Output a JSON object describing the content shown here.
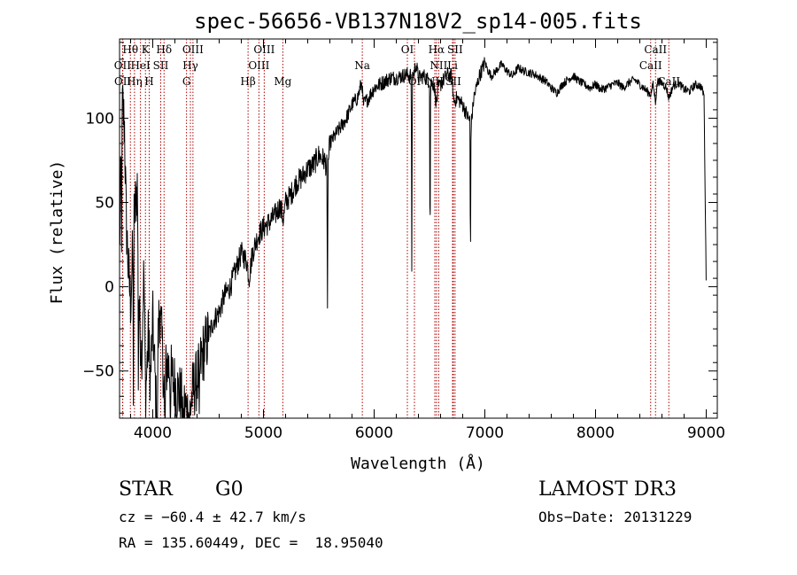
{
  "chart_data": {
    "type": "line",
    "title": "spec-56656-VB137N18V2_sp14-005.fits",
    "xlabel": "Wavelength (Å)",
    "ylabel": "Flux (relative)",
    "xlim": [
      3700,
      9100
    ],
    "ylim": [
      -78,
      147
    ],
    "x_ticks": [
      4000,
      5000,
      6000,
      7000,
      8000,
      9000
    ],
    "x_tick_labels": [
      "4000",
      "5000",
      "6000",
      "7000",
      "8000",
      "9000"
    ],
    "y_ticks": [
      -50,
      0,
      50,
      100
    ],
    "y_tick_labels": [
      "−50",
      "0",
      "50",
      "100"
    ],
    "spectrum_anchors": [
      [
        3700,
        20
      ],
      [
        3710,
        60
      ],
      [
        3725,
        110
      ],
      [
        3745,
        95
      ],
      [
        3760,
        40
      ],
      [
        3780,
        10
      ],
      [
        3800,
        -10
      ],
      [
        3830,
        40
      ],
      [
        3860,
        60
      ],
      [
        3880,
        -20
      ],
      [
        3900,
        -40
      ],
      [
        3920,
        10
      ],
      [
        3935,
        -65
      ],
      [
        3960,
        -30
      ],
      [
        3980,
        -55
      ],
      [
        4000,
        -20
      ],
      [
        4030,
        -70
      ],
      [
        4060,
        -10
      ],
      [
        4090,
        -40
      ],
      [
        4100,
        -60
      ],
      [
        4130,
        -45
      ],
      [
        4180,
        -55
      ],
      [
        4230,
        -62
      ],
      [
        4280,
        -70
      ],
      [
        4320,
        -75
      ],
      [
        4340,
        -72
      ],
      [
        4360,
        -62
      ],
      [
        4400,
        -55
      ],
      [
        4450,
        -40
      ],
      [
        4500,
        -30
      ],
      [
        4550,
        -20
      ],
      [
        4600,
        -15
      ],
      [
        4650,
        -5
      ],
      [
        4700,
        0
      ],
      [
        4750,
        10
      ],
      [
        4800,
        20
      ],
      [
        4850,
        15
      ],
      [
        4870,
        5
      ],
      [
        4900,
        20
      ],
      [
        4950,
        30
      ],
      [
        5000,
        35
      ],
      [
        5050,
        38
      ],
      [
        5100,
        42
      ],
      [
        5150,
        48
      ],
      [
        5180,
        40
      ],
      [
        5200,
        50
      ],
      [
        5250,
        55
      ],
      [
        5300,
        62
      ],
      [
        5350,
        65
      ],
      [
        5400,
        70
      ],
      [
        5450,
        72
      ],
      [
        5500,
        78
      ],
      [
        5550,
        75
      ],
      [
        5580,
        70
      ],
      [
        5600,
        85
      ],
      [
        5650,
        90
      ],
      [
        5700,
        95
      ],
      [
        5750,
        100
      ],
      [
        5800,
        108
      ],
      [
        5850,
        112
      ],
      [
        5890,
        122
      ],
      [
        5900,
        108
      ],
      [
        5950,
        112
      ],
      [
        6000,
        118
      ],
      [
        6050,
        120
      ],
      [
        6100,
        122
      ],
      [
        6150,
        124
      ],
      [
        6200,
        124
      ],
      [
        6250,
        125
      ],
      [
        6300,
        126
      ],
      [
        6350,
        125
      ],
      [
        6380,
        132
      ],
      [
        6400,
        124
      ],
      [
        6450,
        125
      ],
      [
        6500,
        122
      ],
      [
        6540,
        120
      ],
      [
        6563,
        108
      ],
      [
        6580,
        118
      ],
      [
        6620,
        122
      ],
      [
        6660,
        126
      ],
      [
        6700,
        125
      ],
      [
        6720,
        110
      ],
      [
        6750,
        112
      ],
      [
        6800,
        108
      ],
      [
        6850,
        100
      ],
      [
        6880,
        98
      ],
      [
        6900,
        112
      ],
      [
        6950,
        125
      ],
      [
        7000,
        133
      ],
      [
        7030,
        128
      ],
      [
        7060,
        125
      ],
      [
        7100,
        128
      ],
      [
        7150,
        132
      ],
      [
        7200,
        128
      ],
      [
        7250,
        125
      ],
      [
        7300,
        130
      ],
      [
        7350,
        128
      ],
      [
        7400,
        127
      ],
      [
        7450,
        126
      ],
      [
        7500,
        124
      ],
      [
        7550,
        122
      ],
      [
        7600,
        118
      ],
      [
        7650,
        115
      ],
      [
        7700,
        120
      ],
      [
        7750,
        123
      ],
      [
        7800,
        125
      ],
      [
        7850,
        122
      ],
      [
        7900,
        120
      ],
      [
        7950,
        118
      ],
      [
        8000,
        120
      ],
      [
        8050,
        117
      ],
      [
        8100,
        118
      ],
      [
        8150,
        120
      ],
      [
        8200,
        121
      ],
      [
        8250,
        118
      ],
      [
        8300,
        121
      ],
      [
        8350,
        123
      ],
      [
        8400,
        120
      ],
      [
        8450,
        117
      ],
      [
        8498,
        114
      ],
      [
        8520,
        120
      ],
      [
        8542,
        110
      ],
      [
        8560,
        122
      ],
      [
        8600,
        121
      ],
      [
        8640,
        118
      ],
      [
        8662,
        112
      ],
      [
        8700,
        119
      ],
      [
        8750,
        121
      ],
      [
        8800,
        117
      ],
      [
        8850,
        116
      ],
      [
        8900,
        120
      ],
      [
        8950,
        119
      ],
      [
        8980,
        114
      ],
      [
        9000,
        0
      ]
    ],
    "features": [
      [
        3719,
        60
      ],
      [
        3825,
        95
      ],
      [
        3870,
        80
      ],
      [
        4040,
        88
      ],
      [
        4110,
        82
      ],
      [
        4160,
        60
      ],
      [
        4215,
        68
      ],
      [
        4275,
        70
      ],
      [
        4330,
        55
      ],
      [
        4420,
        45
      ],
      [
        5578,
        95
      ],
      [
        6340,
        115
      ],
      [
        6505,
        110
      ],
      [
        6870,
        95
      ]
    ],
    "line_markers": [
      {
        "label": "Hθ",
        "x": 3798,
        "row": 0
      },
      {
        "label": "K",
        "x": 3934,
        "row": 0
      },
      {
        "label": "Hδ",
        "x": 4102,
        "row": 0
      },
      {
        "label": "OIII",
        "x": 4363,
        "row": 0
      },
      {
        "label": "OIII",
        "x": 5007,
        "row": 0
      },
      {
        "label": "OI",
        "x": 6300,
        "row": 0
      },
      {
        "label": "Hα",
        "x": 6563,
        "row": 0
      },
      {
        "label": "SII",
        "x": 6731,
        "row": 0
      },
      {
        "label": "CaII",
        "x": 8542,
        "row": 0
      },
      {
        "label": "OII",
        "x": 3727,
        "row": 1
      },
      {
        "label": "HeI",
        "x": 3889,
        "row": 1
      },
      {
        "label": "SII",
        "x": 4072,
        "row": 1
      },
      {
        "label": "Hγ",
        "x": 4340,
        "row": 1
      },
      {
        "label": "OIII",
        "x": 4959,
        "row": 1
      },
      {
        "label": "Na",
        "x": 5893,
        "row": 1
      },
      {
        "label": "NII",
        "x": 6583,
        "row": 1
      },
      {
        "label": "Li",
        "x": 6708,
        "row": 1
      },
      {
        "label": "CaII",
        "x": 8498,
        "row": 1
      },
      {
        "label": "OII",
        "x": 3729,
        "row": 2
      },
      {
        "label": "Hη",
        "x": 3835,
        "row": 2
      },
      {
        "label": "H",
        "x": 3968,
        "row": 2
      },
      {
        "label": "G",
        "x": 4305,
        "row": 2
      },
      {
        "label": "Hβ",
        "x": 4861,
        "row": 2
      },
      {
        "label": "Mg",
        "x": 5175,
        "row": 2
      },
      {
        "label": "OI",
        "x": 6364,
        "row": 2
      },
      {
        "label": "NII",
        "x": 6548,
        "row": 2
      },
      {
        "label": "SII",
        "x": 6716,
        "row": 2
      },
      {
        "label": "CaII",
        "x": 8662,
        "row": 2
      }
    ]
  },
  "info": {
    "class": "STAR",
    "subclass": "G0",
    "survey": "LAMOST DR3",
    "redshift": "cz = −60.4 ± 42.7 km/s",
    "obs_date": "Obs−Date: 20131229",
    "coords": "RA = 135.60449, DEC =  18.95040"
  },
  "colors": {
    "spectrum": "#000000",
    "marker_line": "#b00000",
    "axes": "#000000",
    "background": "#ffffff"
  }
}
